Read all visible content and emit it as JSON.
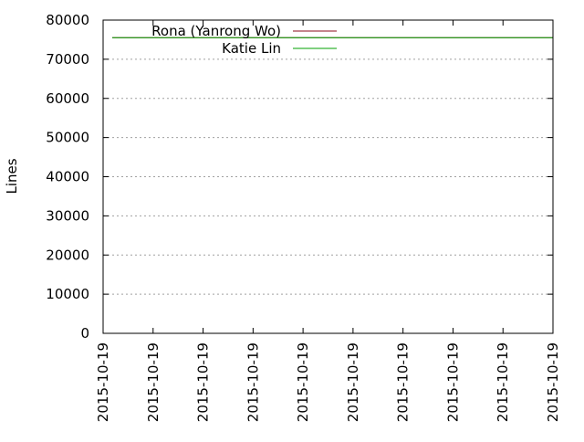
{
  "chart_data": {
    "type": "line",
    "title": "",
    "xlabel": "",
    "ylabel": "Lines",
    "ylim": [
      0,
      80000
    ],
    "yticks": [
      0,
      10000,
      20000,
      30000,
      40000,
      50000,
      60000,
      70000,
      80000
    ],
    "xticks": [
      "2015-10-19",
      "2015-10-19",
      "2015-10-19",
      "2015-10-19",
      "2015-10-19",
      "2015-10-19",
      "2015-10-19",
      "2015-10-19",
      "2015-10-19",
      "2015-10-19"
    ],
    "grid": true,
    "legend_position": "top-left",
    "series": [
      {
        "name": "Rona (Yanrong Wo)",
        "color": "#8b0a1a",
        "values": [
          75500,
          75500
        ]
      },
      {
        "name": "Katie Lin",
        "color": "#00a000",
        "values": [
          75500,
          75500
        ]
      }
    ]
  }
}
